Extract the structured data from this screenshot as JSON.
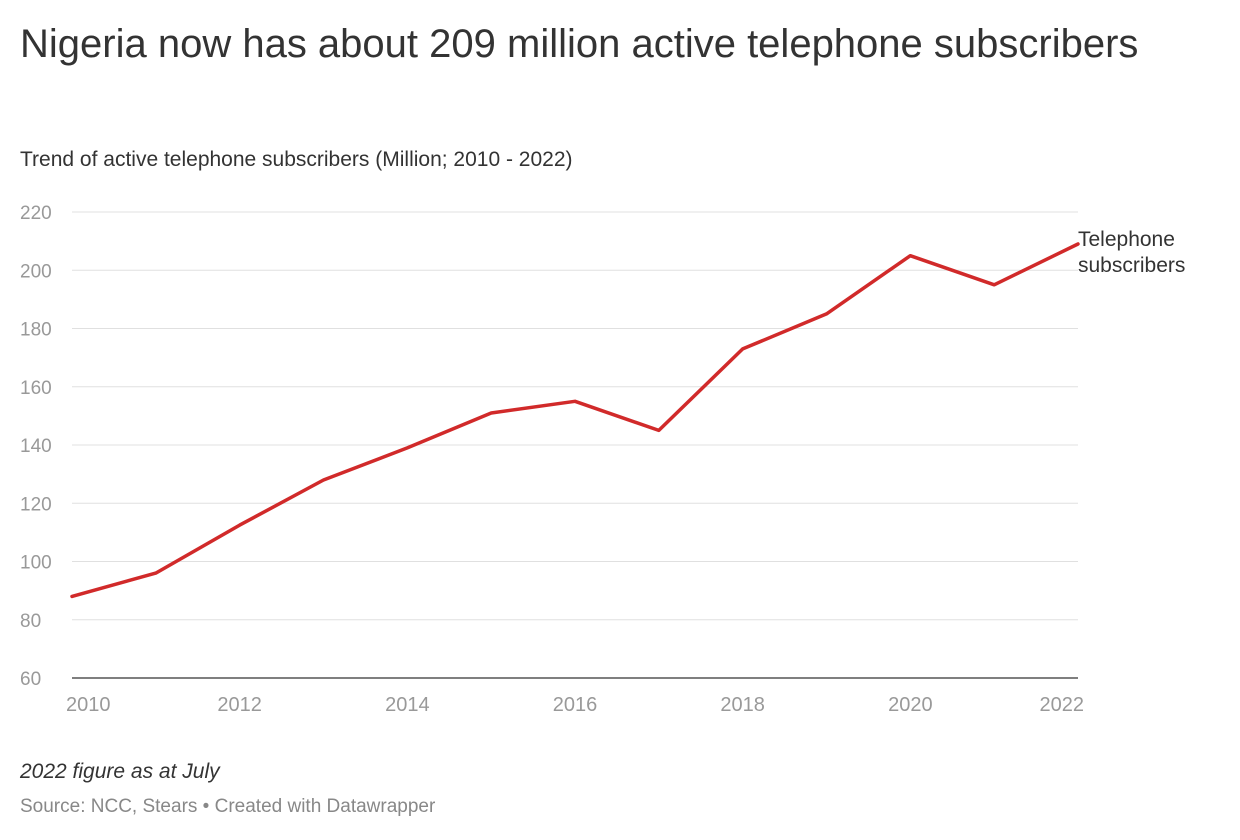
{
  "header": {
    "title": "Nigeria now has about 209 million active telephone subscribers",
    "subtitle": "Trend of active telephone subscribers (Million; 2010 - 2022)"
  },
  "footer": {
    "notes": "2022 figure as at July",
    "source": "Source: NCC, Stears • Created with Datawrapper"
  },
  "chart_data": {
    "type": "line",
    "title": "Nigeria now has about 209 million active telephone subscribers",
    "subtitle": "Trend of active telephone subscribers (Million; 2010 - 2022)",
    "xlabel": "",
    "ylabel": "",
    "x": [
      2010,
      2011,
      2012,
      2013,
      2014,
      2015,
      2016,
      2017,
      2018,
      2019,
      2020,
      2021,
      2022
    ],
    "series": [
      {
        "name": "Telephone subscribers",
        "label_lines": [
          "Telephone",
          "subscribers"
        ],
        "color": "#d12a2a",
        "values": [
          88,
          96,
          112.5,
          128,
          139,
          151,
          155,
          145,
          173,
          185,
          205,
          195,
          209
        ]
      }
    ],
    "xticks": [
      "2010",
      "2012",
      "2014",
      "2016",
      "2018",
      "2020",
      "2022"
    ],
    "yticks": [
      "60",
      "80",
      "100",
      "120",
      "140",
      "160",
      "180",
      "200",
      "220"
    ],
    "xlim": [
      2010,
      2022
    ],
    "ylim": [
      60,
      220
    ],
    "grid": true,
    "legend": "inline label at line end (right)",
    "colors": {
      "line": "#d12a2a",
      "grid": "#e0e0e0",
      "tick_text": "#999999",
      "baseline": "#333333"
    }
  }
}
